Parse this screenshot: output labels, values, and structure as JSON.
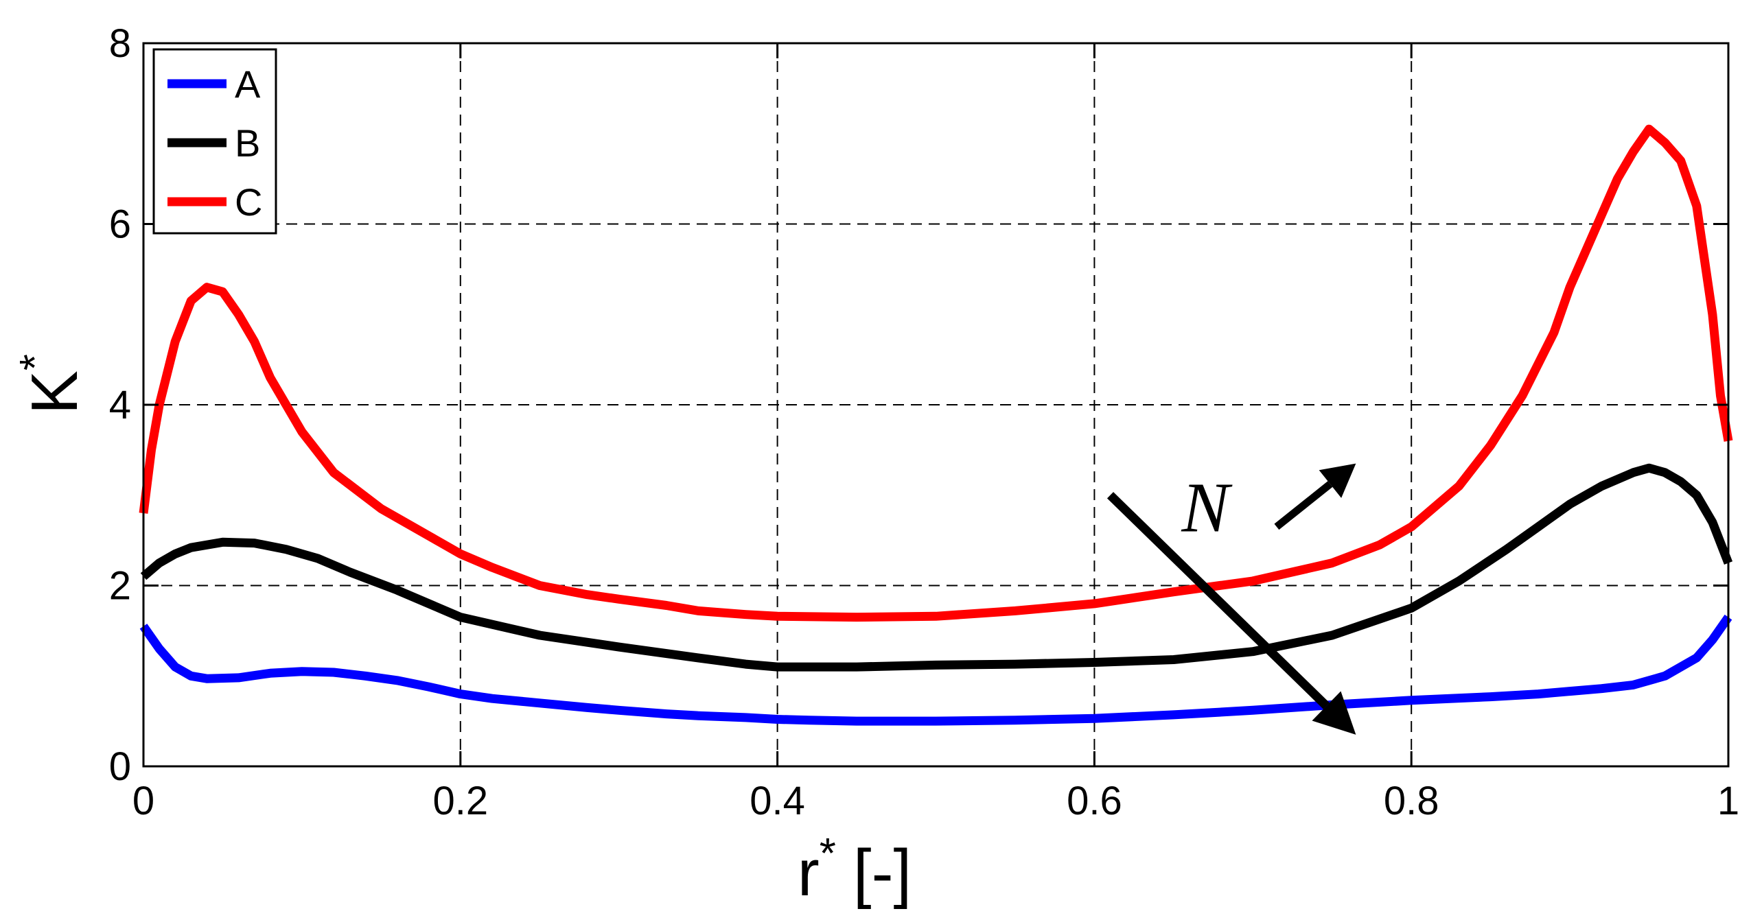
{
  "chart_data": {
    "type": "line",
    "title": "",
    "xlabel": "r",
    "xlabel_superscript": "*",
    "xlabel_unit": "[-]",
    "ylabel": "K",
    "ylabel_superscript": "*",
    "xlim": [
      0,
      1
    ],
    "ylim": [
      0,
      8
    ],
    "xticks": [
      0,
      0.2,
      0.4,
      0.6,
      0.8,
      1
    ],
    "xtick_labels": [
      "0",
      "0.2",
      "0.4",
      "0.6",
      "0.8",
      "1"
    ],
    "yticks": [
      0,
      2,
      4,
      6,
      8
    ],
    "ytick_labels": [
      "0",
      "2",
      "4",
      "6",
      "8"
    ],
    "grid": true,
    "legend_position": "top-left",
    "annotation": {
      "text": "N",
      "note": "arrow pointing down-right across curves; small arrow pointing up-right next to N",
      "arrow_from": [
        0.61,
        3.0
      ],
      "arrow_to": [
        0.765,
        0.35
      ],
      "small_arrow_from": [
        0.715,
        2.65
      ],
      "small_arrow_to": [
        0.765,
        3.35
      ],
      "text_pos": [
        0.67,
        2.6
      ]
    },
    "series": [
      {
        "name": "A",
        "color": "#0000ff",
        "x": [
          0,
          0.01,
          0.02,
          0.03,
          0.04,
          0.06,
          0.08,
          0.1,
          0.12,
          0.14,
          0.16,
          0.18,
          0.2,
          0.22,
          0.25,
          0.28,
          0.3,
          0.33,
          0.35,
          0.38,
          0.4,
          0.42,
          0.45,
          0.48,
          0.5,
          0.55,
          0.6,
          0.65,
          0.7,
          0.75,
          0.8,
          0.85,
          0.88,
          0.9,
          0.92,
          0.94,
          0.96,
          0.98,
          0.99,
          1.0
        ],
        "y": [
          1.55,
          1.3,
          1.1,
          1.0,
          0.97,
          0.98,
          1.03,
          1.05,
          1.04,
          1.0,
          0.95,
          0.88,
          0.8,
          0.75,
          0.7,
          0.65,
          0.62,
          0.58,
          0.56,
          0.54,
          0.52,
          0.51,
          0.5,
          0.5,
          0.5,
          0.51,
          0.53,
          0.57,
          0.62,
          0.68,
          0.73,
          0.77,
          0.8,
          0.83,
          0.86,
          0.9,
          1.0,
          1.2,
          1.4,
          1.65
        ]
      },
      {
        "name": "B",
        "color": "#000000",
        "x": [
          0,
          0.01,
          0.02,
          0.03,
          0.05,
          0.07,
          0.09,
          0.11,
          0.13,
          0.16,
          0.2,
          0.25,
          0.3,
          0.35,
          0.38,
          0.4,
          0.45,
          0.5,
          0.55,
          0.6,
          0.65,
          0.7,
          0.75,
          0.8,
          0.83,
          0.86,
          0.88,
          0.9,
          0.92,
          0.94,
          0.95,
          0.96,
          0.97,
          0.98,
          0.99,
          1.0
        ],
        "y": [
          2.1,
          2.25,
          2.35,
          2.42,
          2.48,
          2.47,
          2.4,
          2.3,
          2.15,
          1.95,
          1.65,
          1.45,
          1.32,
          1.2,
          1.13,
          1.1,
          1.1,
          1.12,
          1.13,
          1.15,
          1.18,
          1.27,
          1.45,
          1.75,
          2.05,
          2.4,
          2.65,
          2.9,
          3.1,
          3.25,
          3.3,
          3.25,
          3.15,
          3.0,
          2.7,
          2.25
        ]
      },
      {
        "name": "C",
        "color": "#ff0000",
        "x": [
          0,
          0.005,
          0.01,
          0.02,
          0.03,
          0.04,
          0.05,
          0.06,
          0.07,
          0.08,
          0.1,
          0.12,
          0.15,
          0.18,
          0.2,
          0.22,
          0.25,
          0.28,
          0.3,
          0.33,
          0.35,
          0.38,
          0.4,
          0.45,
          0.5,
          0.55,
          0.6,
          0.65,
          0.7,
          0.75,
          0.78,
          0.8,
          0.83,
          0.85,
          0.87,
          0.89,
          0.9,
          0.92,
          0.93,
          0.94,
          0.95,
          0.96,
          0.97,
          0.98,
          0.99,
          0.995,
          1.0
        ],
        "y": [
          2.8,
          3.5,
          4.0,
          4.7,
          5.15,
          5.3,
          5.25,
          5.0,
          4.7,
          4.3,
          3.7,
          3.25,
          2.85,
          2.55,
          2.35,
          2.2,
          2.0,
          1.9,
          1.85,
          1.78,
          1.72,
          1.68,
          1.66,
          1.65,
          1.66,
          1.72,
          1.8,
          1.93,
          2.05,
          2.25,
          2.45,
          2.65,
          3.1,
          3.55,
          4.1,
          4.8,
          5.3,
          6.1,
          6.5,
          6.8,
          7.05,
          6.9,
          6.7,
          6.2,
          5.0,
          4.1,
          3.6
        ]
      }
    ]
  }
}
